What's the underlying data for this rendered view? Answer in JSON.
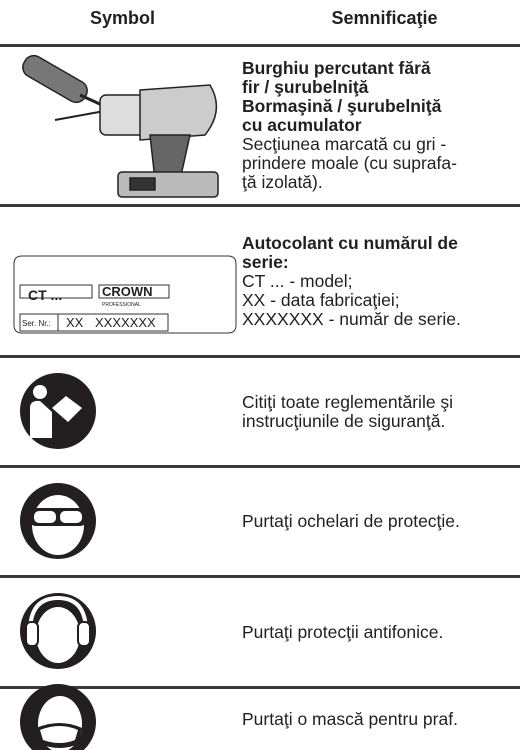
{
  "header": {
    "symbol": "Symbol",
    "meaning": "Semnificaţie"
  },
  "sticker": {
    "model": "CT ...",
    "brand": "CROWN",
    "brand_sub": "PROFESSIONAL",
    "serial_label": "Ser. Nr.:",
    "date": "XX",
    "serial": "XXXXXXX"
  },
  "rows": [
    {
      "bold": [
        "Burghiu percutant fără",
        "fir / şurubelniţă",
        "Bormaşină / şurubelniţă",
        "cu acumulator"
      ],
      "text": [
        "Secţiunea marcată cu gri -",
        "prindere moale (cu suprafa-",
        "ţă izolată)."
      ]
    },
    {
      "bold": [
        "Autocolant cu numărul de",
        "serie:"
      ],
      "text": [
        "CT ... - model;",
        "XX - data fabricaţiei;",
        "XXXXXXX - număr de serie."
      ]
    },
    {
      "text": [
        "Citiţi toate reglementările şi",
        "instrucţiunile de siguranţă."
      ]
    },
    {
      "text": [
        "Purtaţi ochelari de protecţie."
      ]
    },
    {
      "text": [
        "Purtaţi protecţii antifonice."
      ]
    },
    {
      "text": [
        "Purtaţi o mască pentru praf."
      ]
    }
  ]
}
